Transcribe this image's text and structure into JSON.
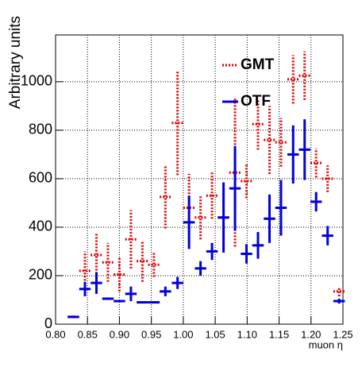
{
  "chart_data": {
    "type": "errorbar",
    "x_label": "muon η",
    "y_label": "Arbitrary units",
    "x": [
      0.828,
      0.846,
      0.864,
      0.882,
      0.9,
      0.918,
      0.936,
      0.954,
      0.972,
      0.991,
      1.009,
      1.027,
      1.045,
      1.063,
      1.081,
      1.099,
      1.117,
      1.135,
      1.153,
      1.172,
      1.19,
      1.208,
      1.226,
      1.244
    ],
    "xerr": 0.009,
    "series": [
      {
        "name": "GMT",
        "color": "#dd0000",
        "dashed": true,
        "values": [
          30,
          220,
          285,
          255,
          205,
          350,
          260,
          245,
          525,
          830,
          480,
          440,
          530,
          440,
          625,
          590,
          825,
          760,
          750,
          1010,
          1025,
          665,
          600,
          135
        ],
        "errors": [
          5,
          80,
          90,
          80,
          70,
          120,
          85,
          50,
          130,
          215,
          140,
          90,
          95,
          130,
          305,
          70,
          105,
          140,
          100,
          100,
          100,
          60,
          55,
          20
        ]
      },
      {
        "name": "OTF",
        "color": "#0000dd",
        "dashed": false,
        "values": [
          30,
          145,
          170,
          105,
          95,
          125,
          90,
          90,
          135,
          170,
          420,
          230,
          300,
          440,
          560,
          290,
          325,
          435,
          480,
          700,
          720,
          505,
          365,
          95
        ],
        "errors": [
          5,
          30,
          45,
          5,
          5,
          30,
          5,
          5,
          20,
          25,
          110,
          30,
          35,
          145,
          175,
          40,
          55,
          100,
          115,
          120,
          125,
          40,
          40,
          10
        ]
      }
    ],
    "xlim": [
      0.8,
      1.25
    ],
    "ylim": [
      0,
      1193
    ],
    "xticks": [
      {
        "value": 0.8,
        "label": "0.80"
      },
      0.85,
      {
        "value": 0.9,
        "label": "0.90"
      },
      0.95,
      {
        "value": 1.0,
        "label": "1.00"
      },
      1.05,
      {
        "value": 1.1,
        "label": "1.10"
      },
      1.15,
      {
        "value": 1.2,
        "label": "1.20"
      },
      1.25
    ],
    "yticks": [
      0,
      200,
      400,
      600,
      800,
      1000
    ],
    "grid": true,
    "legend": "top-center"
  }
}
